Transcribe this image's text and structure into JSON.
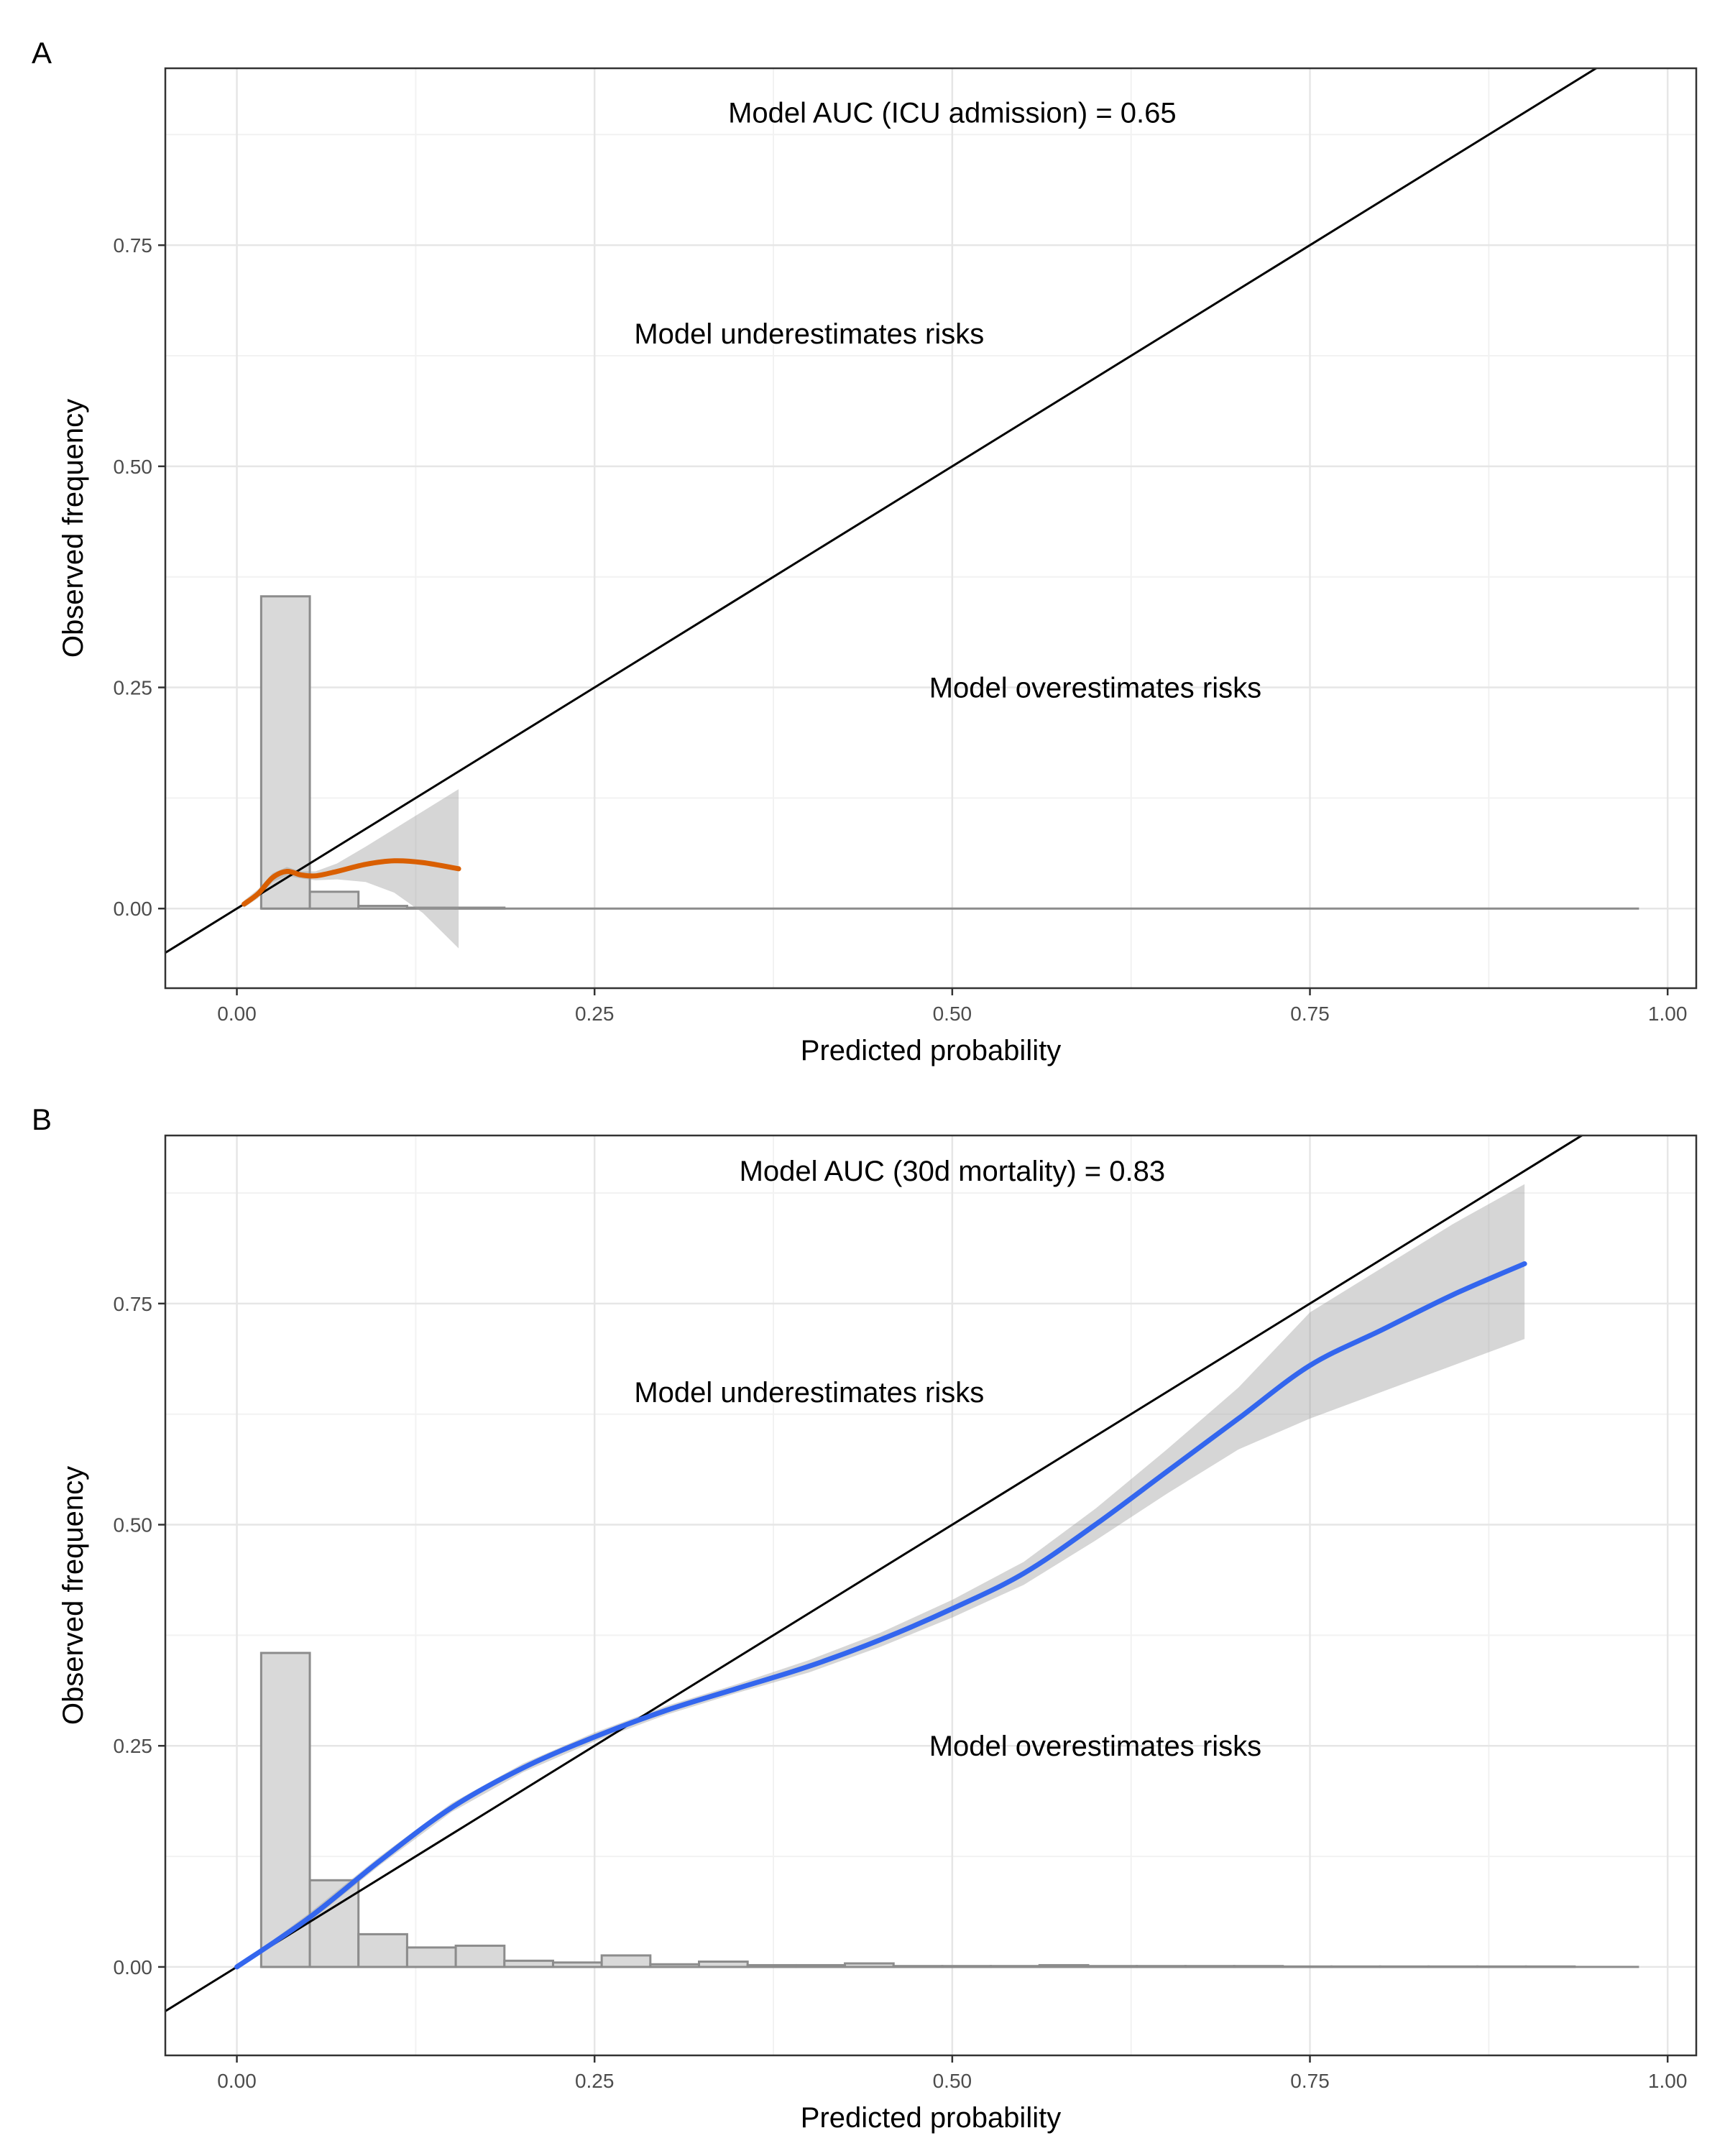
{
  "chart_data": [
    {
      "panel": "A",
      "type": "line",
      "title": "",
      "xlabel": "Predicted probability",
      "ylabel": "Observed frequency",
      "xlim": [
        -0.05,
        1.02
      ],
      "ylim": [
        -0.09,
        0.95
      ],
      "xticks": [
        0,
        0.25,
        0.5,
        0.75,
        1
      ],
      "xtick_labels": [
        "0.00",
        "0.25",
        "0.50",
        "0.75",
        "1.00"
      ],
      "yticks": [
        0,
        0.25,
        0.5,
        0.75
      ],
      "ytick_labels": [
        "0.00",
        "0.25",
        "0.50",
        "0.75"
      ],
      "grid": true,
      "annotations": [
        {
          "text": "Model AUC (ICU admission) = 0.65",
          "x": 0.5,
          "y": 0.9
        },
        {
          "text": "Model underestimates risks",
          "x": 0.4,
          "y": 0.65
        },
        {
          "text": "Model overestimates risks",
          "x": 0.6,
          "y": 0.25
        }
      ],
      "reference_line": {
        "slope": 1,
        "intercept": 0
      },
      "histogram": {
        "bin_edges": [
          0.017,
          0.051,
          0.085,
          0.119,
          0.153,
          0.187
        ],
        "counts": [
          0.353,
          0.019,
          0.003,
          0.001,
          0.001
        ],
        "baseline_end": 0.98
      },
      "curve": {
        "color": "#d95f02",
        "x": [
          0.005,
          0.015,
          0.025,
          0.035,
          0.045,
          0.055,
          0.07,
          0.09,
          0.11,
          0.13,
          0.155
        ],
        "y": [
          0.005,
          0.017,
          0.035,
          0.042,
          0.038,
          0.037,
          0.042,
          0.05,
          0.054,
          0.052,
          0.045
        ],
        "ci_lower": [
          0.001,
          0.012,
          0.03,
          0.037,
          0.034,
          0.032,
          0.033,
          0.03,
          0.018,
          -0.005,
          -0.045
        ],
        "ci_upper": [
          0.009,
          0.022,
          0.04,
          0.047,
          0.042,
          0.042,
          0.051,
          0.07,
          0.09,
          0.11,
          0.135
        ]
      }
    },
    {
      "panel": "B",
      "type": "line",
      "title": "",
      "xlabel": "Predicted probability",
      "ylabel": "Observed frequency",
      "xlim": [
        -0.05,
        1.02
      ],
      "ylim": [
        -0.1,
        0.94
      ],
      "xticks": [
        0,
        0.25,
        0.5,
        0.75,
        1
      ],
      "xtick_labels": [
        "0.00",
        "0.25",
        "0.50",
        "0.75",
        "1.00"
      ],
      "yticks": [
        0,
        0.25,
        0.5,
        0.75
      ],
      "ytick_labels": [
        "0.00",
        "0.25",
        "0.50",
        "0.75"
      ],
      "grid": true,
      "annotations": [
        {
          "text": "Model AUC (30d mortality) = 0.83",
          "x": 0.5,
          "y": 0.9
        },
        {
          "text": "Model underestimates risks",
          "x": 0.4,
          "y": 0.65
        },
        {
          "text": "Model overestimates risks",
          "x": 0.6,
          "y": 0.25
        }
      ],
      "reference_line": {
        "slope": 1,
        "intercept": 0
      },
      "histogram": {
        "bin_edges": [
          0.017,
          0.051,
          0.085,
          0.119,
          0.153,
          0.187,
          0.221,
          0.255,
          0.289,
          0.323,
          0.357,
          0.391,
          0.425,
          0.459,
          0.493,
          0.527,
          0.561,
          0.595,
          0.629,
          0.663,
          0.697,
          0.731,
          0.765,
          0.799,
          0.833,
          0.867,
          0.901,
          0.935
        ],
        "counts": [
          0.355,
          0.098,
          0.037,
          0.022,
          0.024,
          0.007,
          0.005,
          0.013,
          0.003,
          0.006,
          0.002,
          0.002,
          0.004,
          0.001,
          0.001,
          0.001,
          0.002,
          0.001,
          0.001,
          0.001,
          0.001,
          0.0005,
          0.0005,
          0.0005,
          0.0005,
          0.0005,
          0.0005
        ],
        "baseline_end": 0.98
      },
      "curve": {
        "color": "#3366ee",
        "x": [
          0.0,
          0.05,
          0.1,
          0.15,
          0.2,
          0.25,
          0.3,
          0.35,
          0.4,
          0.45,
          0.5,
          0.55,
          0.6,
          0.65,
          0.7,
          0.75,
          0.8,
          0.85,
          0.9
        ],
        "y": [
          0.0,
          0.055,
          0.12,
          0.18,
          0.225,
          0.26,
          0.29,
          0.315,
          0.34,
          0.37,
          0.405,
          0.445,
          0.5,
          0.56,
          0.62,
          0.68,
          0.72,
          0.76,
          0.795
        ],
        "ci_lower": [
          0.0,
          0.05,
          0.115,
          0.175,
          0.22,
          0.255,
          0.285,
          0.31,
          0.333,
          0.362,
          0.395,
          0.432,
          0.482,
          0.535,
          0.585,
          0.62,
          0.65,
          0.68,
          0.71
        ],
        "ci_upper": [
          0.0,
          0.06,
          0.125,
          0.185,
          0.23,
          0.265,
          0.295,
          0.32,
          0.347,
          0.378,
          0.415,
          0.458,
          0.518,
          0.585,
          0.655,
          0.74,
          0.79,
          0.84,
          0.885
        ]
      }
    }
  ]
}
